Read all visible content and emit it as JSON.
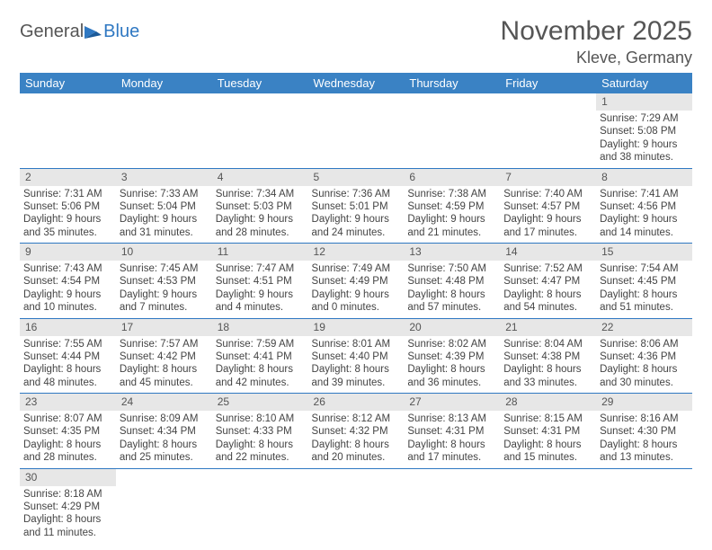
{
  "logo": {
    "part1": "General",
    "part2": "Blue"
  },
  "title": "November 2025",
  "location": "Kleve, Germany",
  "columns": [
    "Sunday",
    "Monday",
    "Tuesday",
    "Wednesday",
    "Thursday",
    "Friday",
    "Saturday"
  ],
  "colors": {
    "header_bg": "#3a82c4",
    "header_fg": "#ffffff",
    "daynum_bg": "#e7e7e7",
    "rule": "#2f78c2",
    "logo_blue": "#2f78c2"
  },
  "weeks": [
    [
      {
        "n": "",
        "lines": []
      },
      {
        "n": "",
        "lines": []
      },
      {
        "n": "",
        "lines": []
      },
      {
        "n": "",
        "lines": []
      },
      {
        "n": "",
        "lines": []
      },
      {
        "n": "",
        "lines": []
      },
      {
        "n": "1",
        "lines": [
          "Sunrise: 7:29 AM",
          "Sunset: 5:08 PM",
          "Daylight: 9 hours",
          "and 38 minutes."
        ]
      }
    ],
    [
      {
        "n": "2",
        "lines": [
          "Sunrise: 7:31 AM",
          "Sunset: 5:06 PM",
          "Daylight: 9 hours",
          "and 35 minutes."
        ]
      },
      {
        "n": "3",
        "lines": [
          "Sunrise: 7:33 AM",
          "Sunset: 5:04 PM",
          "Daylight: 9 hours",
          "and 31 minutes."
        ]
      },
      {
        "n": "4",
        "lines": [
          "Sunrise: 7:34 AM",
          "Sunset: 5:03 PM",
          "Daylight: 9 hours",
          "and 28 minutes."
        ]
      },
      {
        "n": "5",
        "lines": [
          "Sunrise: 7:36 AM",
          "Sunset: 5:01 PM",
          "Daylight: 9 hours",
          "and 24 minutes."
        ]
      },
      {
        "n": "6",
        "lines": [
          "Sunrise: 7:38 AM",
          "Sunset: 4:59 PM",
          "Daylight: 9 hours",
          "and 21 minutes."
        ]
      },
      {
        "n": "7",
        "lines": [
          "Sunrise: 7:40 AM",
          "Sunset: 4:57 PM",
          "Daylight: 9 hours",
          "and 17 minutes."
        ]
      },
      {
        "n": "8",
        "lines": [
          "Sunrise: 7:41 AM",
          "Sunset: 4:56 PM",
          "Daylight: 9 hours",
          "and 14 minutes."
        ]
      }
    ],
    [
      {
        "n": "9",
        "lines": [
          "Sunrise: 7:43 AM",
          "Sunset: 4:54 PM",
          "Daylight: 9 hours",
          "and 10 minutes."
        ]
      },
      {
        "n": "10",
        "lines": [
          "Sunrise: 7:45 AM",
          "Sunset: 4:53 PM",
          "Daylight: 9 hours",
          "and 7 minutes."
        ]
      },
      {
        "n": "11",
        "lines": [
          "Sunrise: 7:47 AM",
          "Sunset: 4:51 PM",
          "Daylight: 9 hours",
          "and 4 minutes."
        ]
      },
      {
        "n": "12",
        "lines": [
          "Sunrise: 7:49 AM",
          "Sunset: 4:49 PM",
          "Daylight: 9 hours",
          "and 0 minutes."
        ]
      },
      {
        "n": "13",
        "lines": [
          "Sunrise: 7:50 AM",
          "Sunset: 4:48 PM",
          "Daylight: 8 hours",
          "and 57 minutes."
        ]
      },
      {
        "n": "14",
        "lines": [
          "Sunrise: 7:52 AM",
          "Sunset: 4:47 PM",
          "Daylight: 8 hours",
          "and 54 minutes."
        ]
      },
      {
        "n": "15",
        "lines": [
          "Sunrise: 7:54 AM",
          "Sunset: 4:45 PM",
          "Daylight: 8 hours",
          "and 51 minutes."
        ]
      }
    ],
    [
      {
        "n": "16",
        "lines": [
          "Sunrise: 7:55 AM",
          "Sunset: 4:44 PM",
          "Daylight: 8 hours",
          "and 48 minutes."
        ]
      },
      {
        "n": "17",
        "lines": [
          "Sunrise: 7:57 AM",
          "Sunset: 4:42 PM",
          "Daylight: 8 hours",
          "and 45 minutes."
        ]
      },
      {
        "n": "18",
        "lines": [
          "Sunrise: 7:59 AM",
          "Sunset: 4:41 PM",
          "Daylight: 8 hours",
          "and 42 minutes."
        ]
      },
      {
        "n": "19",
        "lines": [
          "Sunrise: 8:01 AM",
          "Sunset: 4:40 PM",
          "Daylight: 8 hours",
          "and 39 minutes."
        ]
      },
      {
        "n": "20",
        "lines": [
          "Sunrise: 8:02 AM",
          "Sunset: 4:39 PM",
          "Daylight: 8 hours",
          "and 36 minutes."
        ]
      },
      {
        "n": "21",
        "lines": [
          "Sunrise: 8:04 AM",
          "Sunset: 4:38 PM",
          "Daylight: 8 hours",
          "and 33 minutes."
        ]
      },
      {
        "n": "22",
        "lines": [
          "Sunrise: 8:06 AM",
          "Sunset: 4:36 PM",
          "Daylight: 8 hours",
          "and 30 minutes."
        ]
      }
    ],
    [
      {
        "n": "23",
        "lines": [
          "Sunrise: 8:07 AM",
          "Sunset: 4:35 PM",
          "Daylight: 8 hours",
          "and 28 minutes."
        ]
      },
      {
        "n": "24",
        "lines": [
          "Sunrise: 8:09 AM",
          "Sunset: 4:34 PM",
          "Daylight: 8 hours",
          "and 25 minutes."
        ]
      },
      {
        "n": "25",
        "lines": [
          "Sunrise: 8:10 AM",
          "Sunset: 4:33 PM",
          "Daylight: 8 hours",
          "and 22 minutes."
        ]
      },
      {
        "n": "26",
        "lines": [
          "Sunrise: 8:12 AM",
          "Sunset: 4:32 PM",
          "Daylight: 8 hours",
          "and 20 minutes."
        ]
      },
      {
        "n": "27",
        "lines": [
          "Sunrise: 8:13 AM",
          "Sunset: 4:31 PM",
          "Daylight: 8 hours",
          "and 17 minutes."
        ]
      },
      {
        "n": "28",
        "lines": [
          "Sunrise: 8:15 AM",
          "Sunset: 4:31 PM",
          "Daylight: 8 hours",
          "and 15 minutes."
        ]
      },
      {
        "n": "29",
        "lines": [
          "Sunrise: 8:16 AM",
          "Sunset: 4:30 PM",
          "Daylight: 8 hours",
          "and 13 minutes."
        ]
      }
    ],
    [
      {
        "n": "30",
        "lines": [
          "Sunrise: 8:18 AM",
          "Sunset: 4:29 PM",
          "Daylight: 8 hours",
          "and 11 minutes."
        ]
      },
      {
        "n": "",
        "lines": []
      },
      {
        "n": "",
        "lines": []
      },
      {
        "n": "",
        "lines": []
      },
      {
        "n": "",
        "lines": []
      },
      {
        "n": "",
        "lines": []
      },
      {
        "n": "",
        "lines": []
      }
    ]
  ]
}
